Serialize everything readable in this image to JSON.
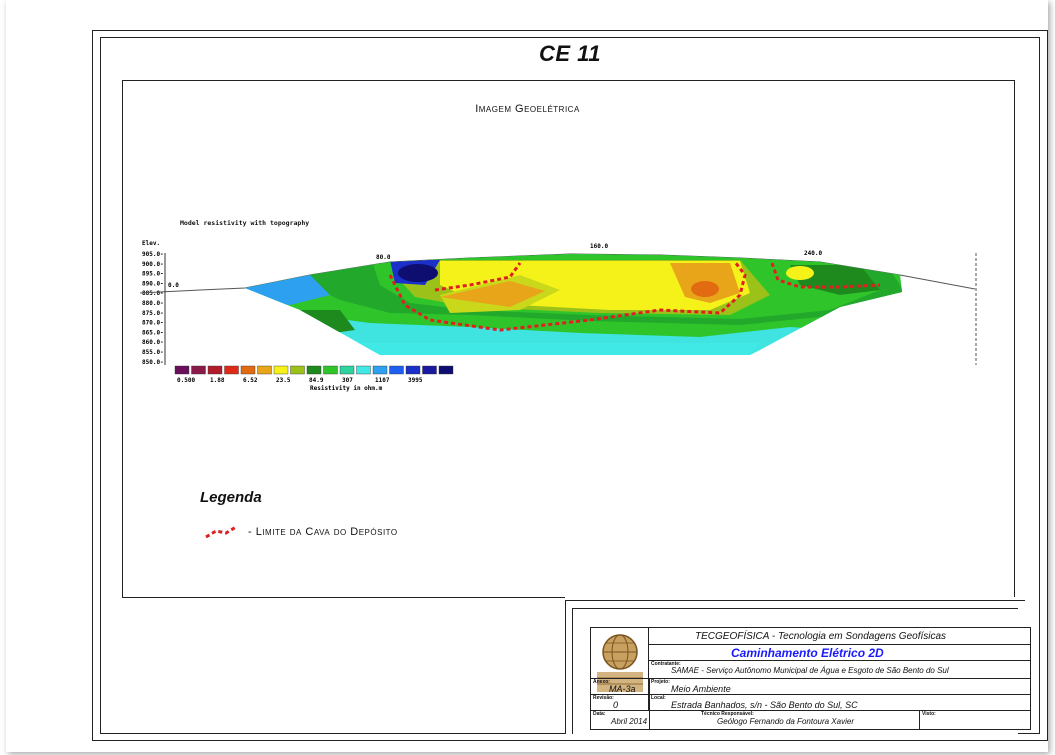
{
  "page": {
    "title": "CE 11"
  },
  "image": {
    "title": "Imagem Geoelétrica"
  },
  "section": {
    "model_title": "Model resistivity with topography",
    "elev_label": "Elev.",
    "elev_ticks": [
      "905.0-",
      "900.0-",
      "895.0-",
      "890.0-",
      "885.0-",
      "880.0-",
      "875.0-",
      "870.0-",
      "865.0-",
      "860.0-",
      "855.0-",
      "850.0-"
    ],
    "distance_labels": [
      "0.0",
      "80.0",
      "160.0",
      "240.0"
    ],
    "colorscale": {
      "colors": [
        "#6a0f5a",
        "#8a1a4a",
        "#b01c2a",
        "#e02a18",
        "#e26a10",
        "#e8a51a",
        "#f5f21a",
        "#9cc21a",
        "#1e8a1e",
        "#2fc52a",
        "#2ed3a0",
        "#40e8e6",
        "#2ea0f0",
        "#1e5ef0",
        "#1a30c8",
        "#1a1aa0",
        "#0e0e70"
      ],
      "labels": [
        "0.500",
        "1.88",
        "6.52",
        "23.5",
        "84.9",
        "307",
        "1107",
        "3995"
      ],
      "unit_label": "Resistivity in ohm.m"
    }
  },
  "legend": {
    "title": "Legenda",
    "item_label": "- Limite da Cava do Depósito",
    "line_color": "#e02020"
  },
  "title_block": {
    "company": "TECGEOFÍSICA - Tecnologia em Sondagens Geofísicas",
    "survey_type": "Caminhamento Elétrico 2D",
    "survey_color": "#1a1aff",
    "contratante_caption": "Contratante:",
    "contratante": "SAMAE - Serviço Autônomo Municipal de Água e Esgoto de São Bento do Sul",
    "anexo_caption": "Anexo:",
    "anexo": "MA-3a",
    "projeto_caption": "Projeto:",
    "projeto": "Meio Ambiente",
    "revisao_caption": "Revisão:",
    "revisao": "0",
    "local_caption": "Local:",
    "local": "Estrada Banhados, s/n - São Bento do Sul, SC",
    "data_caption": "Data:",
    "data": "Abril 2014",
    "tecnico_caption": "Técnico Responsável:",
    "tecnico": "Geólogo Fernando da Fontoura Xavier",
    "visto_caption": "Visto:"
  }
}
